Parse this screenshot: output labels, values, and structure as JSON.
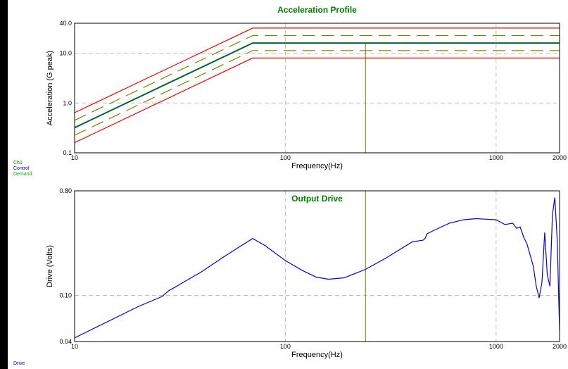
{
  "colors": {
    "title": "#008000",
    "control": "#0000ff",
    "demand": "#00c000",
    "abort_limit": "#ff0000",
    "alarm_limit": "#808000",
    "measured": "#006633",
    "drive": "#0000ee",
    "marker": "#808000",
    "grid": "#c0c0c0"
  },
  "legends": {
    "top": [
      {
        "label": "Ch1",
        "color": "#008000"
      },
      {
        "label": "Control",
        "color": "#0000ff"
      },
      {
        "label": "Demand",
        "color": "#00c000"
      }
    ],
    "bottom": [
      {
        "label": "Drive",
        "color": "#0000ff"
      }
    ]
  },
  "chart_data": [
    {
      "type": "line",
      "title": "Acceleration Profile",
      "xlabel": "Frequency(Hz)",
      "ylabel": "Acceleration (G peak)",
      "xscale": "log",
      "yscale": "log",
      "xlim": [
        10,
        2000
      ],
      "ylim": [
        0.1,
        40
      ],
      "xticks": [
        10,
        100,
        1000,
        2000
      ],
      "xtick_labels": [
        "10",
        "100",
        "1000",
        "2000"
      ],
      "yticks": [
        0.1,
        1,
        10,
        40
      ],
      "ytick_labels": [
        "0.1",
        "1.0",
        "10.0",
        "40.0"
      ],
      "grid": true,
      "marker_x": 240,
      "series": [
        {
          "id": "abort_high",
          "style": "solid",
          "color": "#ff0000",
          "x": [
            10,
            70,
            2000
          ],
          "y": [
            0.64,
            32,
            32
          ]
        },
        {
          "id": "alarm_high",
          "style": "dashed",
          "color": "#808000",
          "x": [
            10,
            70,
            2000
          ],
          "y": [
            0.45,
            22.6,
            22.6
          ]
        },
        {
          "id": "control",
          "style": "solid",
          "color": "#006633",
          "x": [
            10,
            70,
            2000
          ],
          "y": [
            0.32,
            16,
            16
          ]
        },
        {
          "id": "alarm_low",
          "style": "dashed",
          "color": "#808000",
          "x": [
            10,
            70,
            2000
          ],
          "y": [
            0.226,
            11.3,
            11.3
          ]
        },
        {
          "id": "abort_low",
          "style": "solid",
          "color": "#ff0000",
          "x": [
            10,
            70,
            2000
          ],
          "y": [
            0.16,
            8,
            8
          ]
        }
      ]
    },
    {
      "type": "line",
      "title": "Output Drive",
      "xlabel": "Frequency(Hz)",
      "ylabel": "Drive (Volts)",
      "xscale": "log",
      "yscale": "log",
      "xlim": [
        10,
        2000
      ],
      "ylim": [
        0.04,
        0.8
      ],
      "xticks": [
        10,
        100,
        1000,
        2000
      ],
      "xtick_labels": [
        "10",
        "100",
        "1000",
        "2000"
      ],
      "yticks": [
        0.04,
        0.1,
        0.8
      ],
      "ytick_labels": [
        "0.04",
        "0.10",
        "0.80"
      ],
      "grid": true,
      "marker_x": 240,
      "series": [
        {
          "id": "drive",
          "style": "solid",
          "color": "#0000ee",
          "x": [
            10,
            20,
            26,
            28,
            30,
            40,
            50,
            60,
            70,
            80,
            100,
            120,
            140,
            160,
            190,
            240,
            300,
            400,
            450,
            460,
            470,
            500,
            600,
            700,
            800,
            900,
            1000,
            1100,
            1200,
            1250,
            1300,
            1350,
            1400,
            1500,
            1550,
            1600,
            1650,
            1700,
            1750,
            1800,
            1850,
            1900,
            1950,
            2000
          ],
          "y": [
            0.043,
            0.08,
            0.098,
            0.11,
            0.118,
            0.16,
            0.21,
            0.26,
            0.31,
            0.27,
            0.2,
            0.165,
            0.144,
            0.138,
            0.142,
            0.168,
            0.21,
            0.29,
            0.3,
            0.31,
            0.34,
            0.36,
            0.42,
            0.45,
            0.46,
            0.455,
            0.45,
            0.41,
            0.42,
            0.38,
            0.39,
            0.32,
            0.28,
            0.18,
            0.12,
            0.095,
            0.13,
            0.35,
            0.15,
            0.12,
            0.5,
            0.7,
            0.3,
            0.05
          ]
        }
      ]
    }
  ]
}
